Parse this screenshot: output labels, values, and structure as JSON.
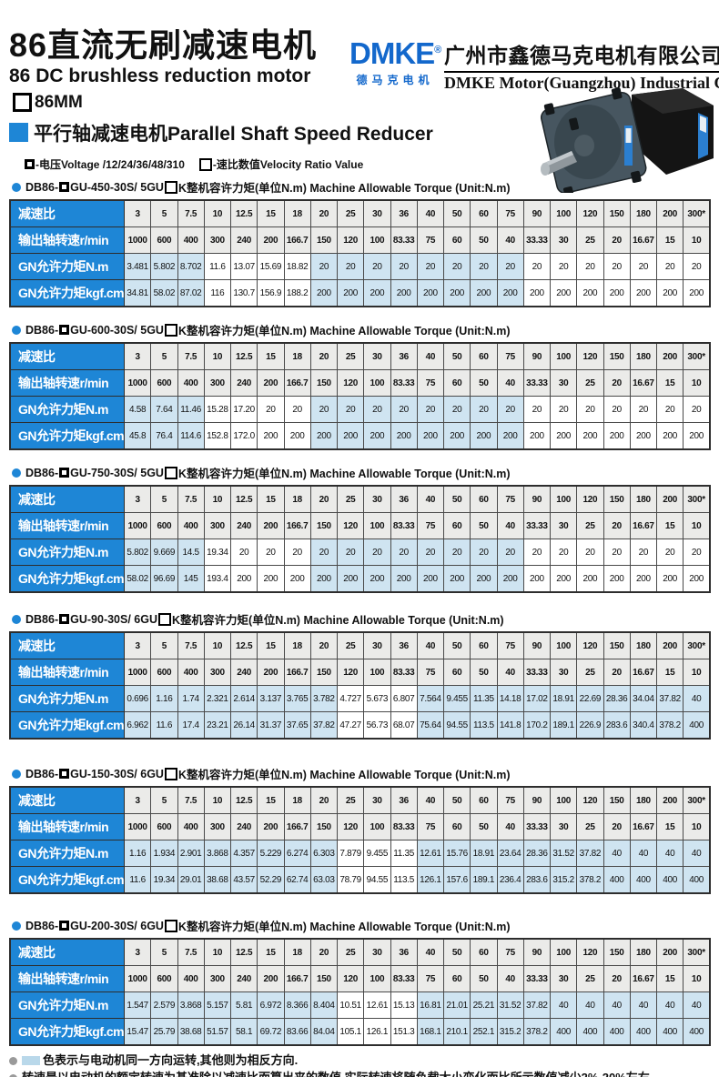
{
  "page": {
    "title_cn": "86直流无刷减速电机",
    "title_en": "86 DC brushless reduction motor",
    "size_label": "86MM",
    "series_label": "平行轴减速电机Parallel Shaft Speed Reducer",
    "legend_voltage_label": "-电压Voltage /12/24/36/48/310",
    "legend_ratio_label": "-速比数值Velocity Ratio Value"
  },
  "brand": {
    "logo": "DMKE",
    "registered": "®",
    "logo_sub": "德马克电机",
    "company_cn": "广州市鑫德马克电机有限公司",
    "company_en": "DMKE Motor(Guangzhou) Industrial Co.,Limited"
  },
  "colors": {
    "accent_blue": "#1e86d6",
    "logo_blue": "#1368cc",
    "highlight_blue": "#cfe4f1",
    "row_gray": "#ebebe9",
    "note_swatch": "#b9d8ea"
  },
  "table_common": {
    "row_labels": [
      "减速比",
      "输出轴转速r/min",
      "GN允许力矩N.m",
      "GN允许力矩kgf.cm"
    ],
    "ratios": [
      "3",
      "5",
      "7.5",
      "10",
      "12.5",
      "15",
      "18",
      "20",
      "25",
      "30",
      "36",
      "40",
      "50",
      "60",
      "75",
      "90",
      "100",
      "120",
      "150",
      "180",
      "200",
      "300*"
    ],
    "speeds": [
      "1000",
      "600",
      "400",
      "300",
      "240",
      "200",
      "166.7",
      "150",
      "120",
      "100",
      "83.33",
      "75",
      "60",
      "50",
      "40",
      "33.33",
      "30",
      "25",
      "20",
      "16.67",
      "15",
      "10"
    ]
  },
  "sections": [
    {
      "model_prefix": "DB86-",
      "model_mid": "GU-450-30S/ 5GU",
      "model_suffix": "K整机容许力矩(单位N.m) Machine Allowable Torque (Unit:N.m)",
      "torque_nm": [
        "3.481",
        "5.802",
        "8.702",
        "11.6",
        "13.07",
        "15.69",
        "18.82",
        "20",
        "20",
        "20",
        "20",
        "20",
        "20",
        "20",
        "20",
        "20",
        "20",
        "20",
        "20",
        "20",
        "20",
        "20"
      ],
      "torque_kgfcm": [
        "34.81",
        "58.02",
        "87.02",
        "116",
        "130.7",
        "156.9",
        "188.2",
        "200",
        "200",
        "200",
        "200",
        "200",
        "200",
        "200",
        "200",
        "200",
        "200",
        "200",
        "200",
        "200",
        "200",
        "200"
      ],
      "highlight": [
        1,
        1,
        1,
        0,
        0,
        0,
        0,
        1,
        1,
        1,
        1,
        1,
        1,
        1,
        1,
        0,
        0,
        0,
        0,
        0,
        0,
        0
      ]
    },
    {
      "model_prefix": "DB86-",
      "model_mid": "GU-600-30S/ 5GU",
      "model_suffix": "K整机容许力矩(单位N.m) Machine Allowable Torque (Unit:N.m)",
      "torque_nm": [
        "4.58",
        "7.64",
        "11.46",
        "15.28",
        "17.20",
        "20",
        "20",
        "20",
        "20",
        "20",
        "20",
        "20",
        "20",
        "20",
        "20",
        "20",
        "20",
        "20",
        "20",
        "20",
        "20",
        "20"
      ],
      "torque_kgfcm": [
        "45.8",
        "76.4",
        "114.6",
        "152.8",
        "172.0",
        "200",
        "200",
        "200",
        "200",
        "200",
        "200",
        "200",
        "200",
        "200",
        "200",
        "200",
        "200",
        "200",
        "200",
        "200",
        "200",
        "200"
      ],
      "highlight": [
        1,
        1,
        1,
        0,
        0,
        0,
        0,
        1,
        1,
        1,
        1,
        1,
        1,
        1,
        1,
        0,
        0,
        0,
        0,
        0,
        0,
        0
      ]
    },
    {
      "model_prefix": "DB86-",
      "model_mid": "GU-750-30S/ 5GU",
      "model_suffix": "K整机容许力矩(单位N.m) Machine Allowable Torque (Unit:N.m)",
      "torque_nm": [
        "5.802",
        "9.669",
        "14.5",
        "19.34",
        "20",
        "20",
        "20",
        "20",
        "20",
        "20",
        "20",
        "20",
        "20",
        "20",
        "20",
        "20",
        "20",
        "20",
        "20",
        "20",
        "20",
        "20"
      ],
      "torque_kgfcm": [
        "58.02",
        "96.69",
        "145",
        "193.4",
        "200",
        "200",
        "200",
        "200",
        "200",
        "200",
        "200",
        "200",
        "200",
        "200",
        "200",
        "200",
        "200",
        "200",
        "200",
        "200",
        "200",
        "200"
      ],
      "highlight": [
        1,
        1,
        1,
        0,
        0,
        0,
        0,
        1,
        1,
        1,
        1,
        1,
        1,
        1,
        1,
        0,
        0,
        0,
        0,
        0,
        0,
        0
      ]
    },
    {
      "model_prefix": "DB86-",
      "model_mid": "GU-90-30S/ 6GU",
      "model_suffix": "K整机容许力矩(单位N.m) Machine Allowable Torque (Unit:N.m)",
      "torque_nm": [
        "0.696",
        "1.16",
        "1.74",
        "2.321",
        "2.614",
        "3.137",
        "3.765",
        "3.782",
        "4.727",
        "5.673",
        "6.807",
        "7.564",
        "9.455",
        "11.35",
        "14.18",
        "17.02",
        "18.91",
        "22.69",
        "28.36",
        "34.04",
        "37.82",
        "40"
      ],
      "torque_kgfcm": [
        "6.962",
        "11.6",
        "17.4",
        "23.21",
        "26.14",
        "31.37",
        "37.65",
        "37.82",
        "47.27",
        "56.73",
        "68.07",
        "75.64",
        "94.55",
        "113.5",
        "141.8",
        "170.2",
        "189.1",
        "226.9",
        "283.6",
        "340.4",
        "378.2",
        "400"
      ],
      "highlight": [
        1,
        1,
        1,
        1,
        1,
        1,
        1,
        1,
        0,
        0,
        0,
        1,
        1,
        1,
        1,
        1,
        1,
        1,
        1,
        1,
        1,
        1
      ]
    },
    {
      "model_prefix": "DB86-",
      "model_mid": "GU-150-30S/ 6GU",
      "model_suffix": "K整机容许力矩(单位N.m) Machine Allowable Torque (Unit:N.m)",
      "torque_nm": [
        "1.16",
        "1.934",
        "2.901",
        "3.868",
        "4.357",
        "5.229",
        "6.274",
        "6.303",
        "7.879",
        "9.455",
        "11.35",
        "12.61",
        "15.76",
        "18.91",
        "23.64",
        "28.36",
        "31.52",
        "37.82",
        "40",
        "40",
        "40",
        "40"
      ],
      "torque_kgfcm": [
        "11.6",
        "19.34",
        "29.01",
        "38.68",
        "43.57",
        "52.29",
        "62.74",
        "63.03",
        "78.79",
        "94.55",
        "113.5",
        "126.1",
        "157.6",
        "189.1",
        "236.4",
        "283.6",
        "315.2",
        "378.2",
        "400",
        "400",
        "400",
        "400"
      ],
      "highlight": [
        1,
        1,
        1,
        1,
        1,
        1,
        1,
        1,
        0,
        0,
        0,
        1,
        1,
        1,
        1,
        1,
        1,
        1,
        1,
        1,
        1,
        1
      ]
    },
    {
      "model_prefix": "DB86-",
      "model_mid": "GU-200-30S/ 6GU",
      "model_suffix": "K整机容许力矩(单位N.m) Machine Allowable Torque (Unit:N.m)",
      "torque_nm": [
        "1.547",
        "2.579",
        "3.868",
        "5.157",
        "5.81",
        "6.972",
        "8.366",
        "8.404",
        "10.51",
        "12.61",
        "15.13",
        "16.81",
        "21.01",
        "25.21",
        "31.52",
        "37.82",
        "40",
        "40",
        "40",
        "40",
        "40",
        "40"
      ],
      "torque_kgfcm": [
        "15.47",
        "25.79",
        "38.68",
        "51.57",
        "58.1",
        "69.72",
        "83.66",
        "84.04",
        "105.1",
        "126.1",
        "151.3",
        "168.1",
        "210.1",
        "252.1",
        "315.2",
        "378.2",
        "400",
        "400",
        "400",
        "400",
        "400",
        "400"
      ],
      "highlight": [
        1,
        1,
        1,
        1,
        1,
        1,
        1,
        1,
        0,
        0,
        0,
        1,
        1,
        1,
        1,
        1,
        1,
        1,
        1,
        1,
        1,
        1
      ]
    }
  ],
  "notes": [
    {
      "text": "色表示与电动机同一方向运转,其他则为相反方向."
    },
    {
      "text": "转速是以电动机的额定转速为基准除以减速比而算出来的数值.实际转速将随负载大小变化而比所示数值减少2%-20%左右."
    }
  ]
}
